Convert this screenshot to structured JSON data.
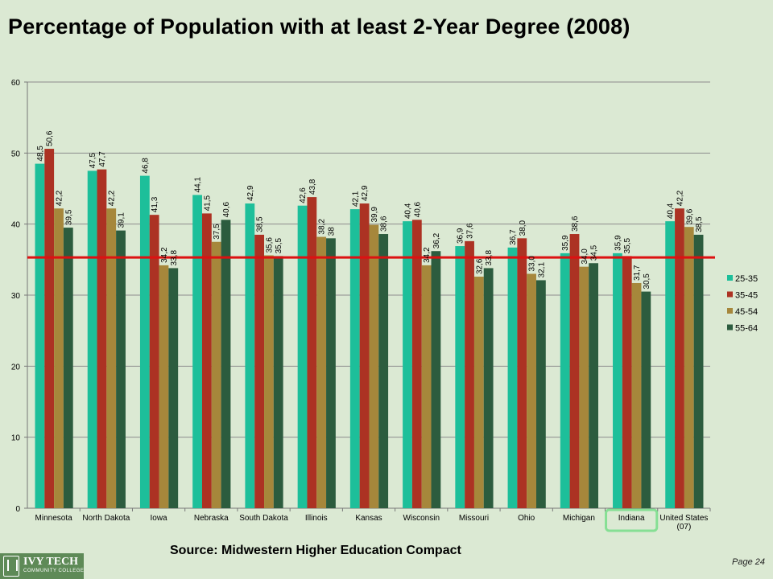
{
  "header": {
    "title": "Percentage of Population with at least 2-Year Degree (2008)"
  },
  "footer": {
    "source": "Source: Midwestern Higher Education Compact",
    "page": "Page 24",
    "logo_text": "IVY TECH",
    "logo_sub": "COMMUNITY COLLEGE"
  },
  "colors": {
    "25-35": "#1dbf9a",
    "35-45": "#ac3223",
    "45-54": "#a6873b",
    "55-64": "#2c5c3e",
    "reference_line": "#dd1111",
    "highlight": "#77dd88"
  },
  "chart_data": {
    "type": "bar",
    "title": "Percentage of Population with at least 2-Year Degree (2008)",
    "categories": [
      "Minnesota",
      "North Dakota",
      "Iowa",
      "Nebraska",
      "South Dakota",
      "Illinois",
      "Kansas",
      "Wisconsin",
      "Missouri",
      "Ohio",
      "Michigan",
      "Indiana",
      "United States\n(07)"
    ],
    "series": [
      {
        "name": "25-35",
        "values": [
          48.5,
          47.5,
          46.8,
          44.1,
          42.9,
          42.6,
          42.1,
          40.4,
          36.9,
          36.7,
          35.9,
          35.9,
          40.4
        ]
      },
      {
        "name": "35-45",
        "values": [
          50.6,
          47.7,
          41.3,
          41.5,
          38.5,
          43.8,
          42.9,
          40.6,
          37.6,
          38.0,
          38.6,
          35.5,
          42.2
        ]
      },
      {
        "name": "45-54",
        "values": [
          42.2,
          42.2,
          34.2,
          37.5,
          35.6,
          38.2,
          39.9,
          34.2,
          32.6,
          33.0,
          34.0,
          31.7,
          39.6
        ]
      },
      {
        "name": "55-64",
        "values": [
          39.5,
          39.1,
          33.8,
          40.6,
          35.5,
          38.0,
          38.6,
          36.2,
          33.8,
          32.1,
          34.5,
          30.5,
          38.5
        ]
      }
    ],
    "data_labels": [
      [
        "48,5",
        "47,5",
        "46,8",
        "44,1",
        "42,9",
        "42,6",
        "42,1",
        "40,4",
        "36,9",
        "36,7",
        "35,9",
        "35,9",
        "40,4"
      ],
      [
        "50,6",
        "47,7",
        "41,3",
        "41,5",
        "38,5",
        "43,8",
        "42,9",
        "40,6",
        "37,6",
        "38,0",
        "38,6",
        "35,5",
        "42,2"
      ],
      [
        "42,2",
        "42,2",
        "34,2",
        "37,5",
        "35,6",
        "38,2",
        "39,9",
        "34,2",
        "32,6",
        "33,0",
        "34,0",
        "31,7",
        "39,6"
      ],
      [
        "39,5",
        "39,1",
        "33,8",
        "40,6",
        "35,5",
        "38",
        "38,6",
        "36,2",
        "33,8",
        "32,1",
        "34,5",
        "30,5",
        "38,5"
      ]
    ],
    "ylim": [
      0,
      60
    ],
    "yticks": [
      0,
      10,
      20,
      30,
      40,
      50,
      60
    ],
    "grid": true,
    "legend": "right",
    "reference_line": 35.3,
    "highlighted_category": "Indiana",
    "xlabel": "",
    "ylabel": ""
  }
}
